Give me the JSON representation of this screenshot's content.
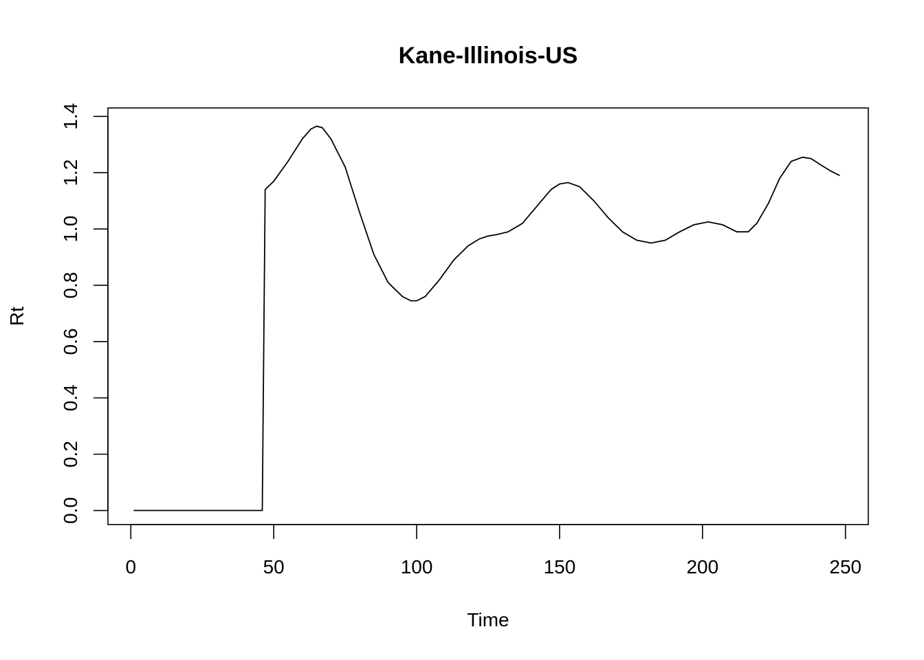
{
  "chart_data": {
    "type": "line",
    "title": "Kane-Illinois-US",
    "xlabel": "Time",
    "ylabel": "Rt",
    "xlim": [
      -8,
      258
    ],
    "ylim": [
      -0.05,
      1.43
    ],
    "xticks": [
      0,
      50,
      100,
      150,
      200,
      250
    ],
    "yticks": [
      0.0,
      0.2,
      0.4,
      0.6,
      0.8,
      1.0,
      1.2,
      1.4
    ],
    "xtick_labels": [
      "0",
      "50",
      "100",
      "150",
      "200",
      "250"
    ],
    "ytick_labels": [
      "0.0",
      "0.2",
      "0.4",
      "0.6",
      "0.8",
      "1.0",
      "1.2",
      "1.4"
    ],
    "grid": false,
    "series": [
      {
        "x": [
          1,
          10,
          20,
          30,
          40,
          46,
          47,
          50,
          55,
          60,
          63,
          65,
          67,
          70,
          75,
          80,
          85,
          90,
          95,
          98,
          100,
          103,
          108,
          113,
          118,
          122,
          125,
          128,
          132,
          137,
          142,
          147,
          150,
          153,
          157,
          162,
          167,
          172,
          177,
          182,
          187,
          192,
          197,
          202,
          207,
          212,
          216,
          219,
          223,
          227,
          231,
          235,
          238,
          241,
          245,
          248
        ],
        "y": [
          0.0,
          0.0,
          0.0,
          0.0,
          0.0,
          0.0,
          1.14,
          1.17,
          1.24,
          1.32,
          1.355,
          1.365,
          1.36,
          1.32,
          1.22,
          1.06,
          0.91,
          0.81,
          0.76,
          0.745,
          0.745,
          0.76,
          0.82,
          0.89,
          0.94,
          0.965,
          0.975,
          0.98,
          0.99,
          1.02,
          1.08,
          1.14,
          1.16,
          1.165,
          1.15,
          1.1,
          1.04,
          0.99,
          0.96,
          0.95,
          0.96,
          0.99,
          1.015,
          1.025,
          1.015,
          0.99,
          0.99,
          1.02,
          1.09,
          1.18,
          1.24,
          1.255,
          1.25,
          1.23,
          1.205,
          1.19
        ]
      }
    ]
  }
}
